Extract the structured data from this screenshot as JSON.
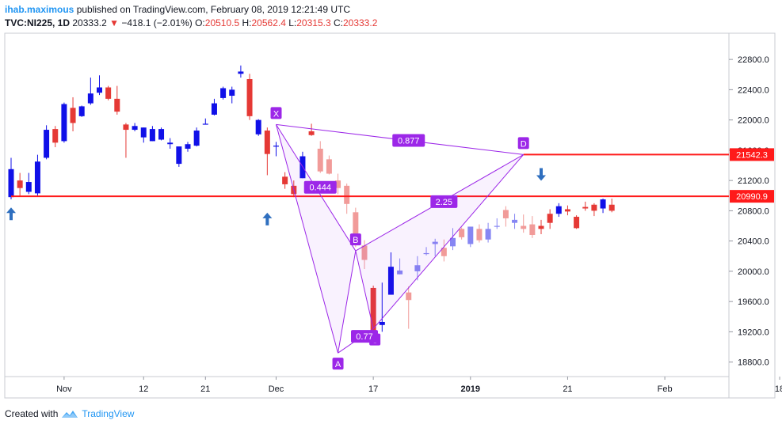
{
  "header": {
    "author": "ihab.maximous",
    "published": "published on TradingView.com, February 08, 2019 12:21:49 UTC",
    "symbol": "TVC:NI225, 1D",
    "last": "20333.2",
    "change": "−418.1 (−2.01%)",
    "o_label": "O:",
    "o_value": "20510.5",
    "h_label": "H:",
    "h_value": "20562.4",
    "l_label": "L:",
    "l_value": "20315.3",
    "c_label": "C:",
    "c_value": "20333.2"
  },
  "footer": {
    "created_with": "Created with",
    "brand": "TradingView"
  },
  "colors": {
    "up": "#1010e8",
    "down": "#e53935",
    "pattern": "#9c27e8",
    "hline": "#ff1a1a",
    "arrow": "#2f6fbf"
  },
  "chart_data": {
    "type": "candlestick",
    "ylim": [
      18650,
      23000
    ],
    "y_ticks": [
      "18800.0",
      "19200.0",
      "19600.0",
      "20000.0",
      "20400.0",
      "20800.0",
      "21200.0",
      "21600.0",
      "22000.0",
      "22400.0",
      "22800.0"
    ],
    "x_ticks": [
      {
        "i": 6,
        "label": "Nov"
      },
      {
        "i": 15,
        "label": "12"
      },
      {
        "i": 22,
        "label": "21"
      },
      {
        "i": 30,
        "label": "Dec"
      },
      {
        "i": 41,
        "label": "17"
      },
      {
        "i": 52,
        "label": "2019"
      },
      {
        "i": 63,
        "label": "21"
      },
      {
        "i": 74,
        "label": "Feb"
      },
      {
        "i": 87,
        "label": "18"
      }
    ],
    "candles": [
      {
        "o": 20980,
        "h": 21500,
        "l": 20950,
        "c": 21350
      },
      {
        "o": 21200,
        "h": 21300,
        "l": 21000,
        "c": 21100
      },
      {
        "o": 21050,
        "h": 21300,
        "l": 21020,
        "c": 21180
      },
      {
        "o": 21030,
        "h": 21540,
        "l": 21000,
        "c": 21450
      },
      {
        "o": 21500,
        "h": 21930,
        "l": 21480,
        "c": 21870
      },
      {
        "o": 21880,
        "h": 21920,
        "l": 21640,
        "c": 21700
      },
      {
        "o": 21720,
        "h": 22230,
        "l": 21700,
        "c": 22210
      },
      {
        "o": 22160,
        "h": 22300,
        "l": 21850,
        "c": 21960
      },
      {
        "o": 22050,
        "h": 22190,
        "l": 22040,
        "c": 22180
      },
      {
        "o": 22220,
        "h": 22560,
        "l": 22200,
        "c": 22350
      },
      {
        "o": 22360,
        "h": 22590,
        "l": 22330,
        "c": 22430
      },
      {
        "o": 22430,
        "h": 22450,
        "l": 22260,
        "c": 22280
      },
      {
        "o": 22280,
        "h": 22450,
        "l": 22070,
        "c": 22110
      },
      {
        "o": 21940,
        "h": 21960,
        "l": 21500,
        "c": 21870
      },
      {
        "o": 21870,
        "h": 21960,
        "l": 21850,
        "c": 21920
      },
      {
        "o": 21770,
        "h": 21900,
        "l": 21700,
        "c": 21900
      },
      {
        "o": 21720,
        "h": 21920,
        "l": 21720,
        "c": 21880
      },
      {
        "o": 21740,
        "h": 21900,
        "l": 21730,
        "c": 21880
      },
      {
        "o": 21680,
        "h": 21760,
        "l": 21620,
        "c": 21700
      },
      {
        "o": 21420,
        "h": 21630,
        "l": 21380,
        "c": 21650
      },
      {
        "o": 21620,
        "h": 21710,
        "l": 21580,
        "c": 21680
      },
      {
        "o": 21660,
        "h": 21900,
        "l": 21650,
        "c": 21860
      },
      {
        "o": 21940,
        "h": 22020,
        "l": 21940,
        "c": 21950
      },
      {
        "o": 22070,
        "h": 22280,
        "l": 22060,
        "c": 22220
      },
      {
        "o": 22290,
        "h": 22440,
        "l": 22270,
        "c": 22420
      },
      {
        "o": 22320,
        "h": 22440,
        "l": 22220,
        "c": 22400
      },
      {
        "o": 22610,
        "h": 22720,
        "l": 22560,
        "c": 22640
      },
      {
        "o": 22540,
        "h": 22610,
        "l": 22000,
        "c": 22050
      },
      {
        "o": 21810,
        "h": 22010,
        "l": 21790,
        "c": 22000
      },
      {
        "o": 21860,
        "h": 21900,
        "l": 21270,
        "c": 21550
      },
      {
        "o": 21650,
        "h": 21710,
        "l": 21520,
        "c": 21660
      },
      {
        "o": 21250,
        "h": 21310,
        "l": 21090,
        "c": 21150
      },
      {
        "o": 21130,
        "h": 21200,
        "l": 20980,
        "c": 21020
      },
      {
        "o": 21230,
        "h": 21580,
        "l": 21230,
        "c": 21520
      },
      {
        "o": 21850,
        "h": 21950,
        "l": 21790,
        "c": 21800
      },
      {
        "o": 21620,
        "h": 21720,
        "l": 21300,
        "c": 21320
      },
      {
        "o": 21480,
        "h": 21530,
        "l": 21280,
        "c": 21290
      },
      {
        "o": 21200,
        "h": 21290,
        "l": 21020,
        "c": 21100
      },
      {
        "o": 21130,
        "h": 21160,
        "l": 20760,
        "c": 20890
      },
      {
        "o": 20780,
        "h": 20840,
        "l": 20320,
        "c": 20400
      },
      {
        "o": 20340,
        "h": 20410,
        "l": 20030,
        "c": 20150
      },
      {
        "o": 19780,
        "h": 19810,
        "l": 19140,
        "c": 19160
      },
      {
        "o": 19290,
        "h": 19850,
        "l": 19200,
        "c": 19330
      },
      {
        "o": 19690,
        "h": 20250,
        "l": 19690,
        "c": 20060
      },
      {
        "o": 19960,
        "h": 20170,
        "l": 19960,
        "c": 20010
      },
      {
        "o": 19720,
        "h": 19800,
        "l": 19240,
        "c": 19620
      },
      {
        "o": 20000,
        "h": 20200,
        "l": 19880,
        "c": 20080
      },
      {
        "o": 20230,
        "h": 20320,
        "l": 20210,
        "c": 20240
      },
      {
        "o": 20360,
        "h": 20430,
        "l": 20200,
        "c": 20390
      },
      {
        "o": 20310,
        "h": 20420,
        "l": 20130,
        "c": 20200
      },
      {
        "o": 20330,
        "h": 20570,
        "l": 20280,
        "c": 20440
      },
      {
        "o": 20560,
        "h": 20580,
        "l": 20420,
        "c": 20450
      },
      {
        "o": 20360,
        "h": 20590,
        "l": 20320,
        "c": 20590
      },
      {
        "o": 20560,
        "h": 20620,
        "l": 20380,
        "c": 20410
      },
      {
        "o": 20420,
        "h": 20640,
        "l": 20380,
        "c": 20560
      },
      {
        "o": 20590,
        "h": 20700,
        "l": 20560,
        "c": 20600
      },
      {
        "o": 20810,
        "h": 20860,
        "l": 20590,
        "c": 20700
      },
      {
        "o": 20640,
        "h": 20760,
        "l": 20560,
        "c": 20680
      },
      {
        "o": 20600,
        "h": 20750,
        "l": 20510,
        "c": 20560
      },
      {
        "o": 20620,
        "h": 20730,
        "l": 20440,
        "c": 20480
      },
      {
        "o": 20600,
        "h": 20680,
        "l": 20490,
        "c": 20560
      },
      {
        "o": 20760,
        "h": 20820,
        "l": 20560,
        "c": 20640
      },
      {
        "o": 20760,
        "h": 20900,
        "l": 20720,
        "c": 20860
      },
      {
        "o": 20820,
        "h": 20870,
        "l": 20740,
        "c": 20790
      },
      {
        "o": 20720,
        "h": 20740,
        "l": 20560,
        "c": 20570
      },
      {
        "o": 20850,
        "h": 20920,
        "l": 20800,
        "c": 20830
      },
      {
        "o": 20880,
        "h": 20900,
        "l": 20730,
        "c": 20800
      },
      {
        "o": 20830,
        "h": 20960,
        "l": 20770,
        "c": 20950
      },
      {
        "o": 20880,
        "h": 20960,
        "l": 20780,
        "c": 20800
      }
    ],
    "hlines": [
      {
        "value": 21542.3,
        "label": "21542.3",
        "from_i": 58
      },
      {
        "value": 20990.9,
        "label": "20990.9",
        "from_i": 0
      }
    ],
    "pattern": {
      "points": [
        {
          "name": "X",
          "i": 30,
          "v": 21940
        },
        {
          "name": "A",
          "i": 37,
          "v": 18920
        },
        {
          "name": "B",
          "i": 39,
          "v": 20270
        },
        {
          "name": "C",
          "i": 41,
          "v": 19240
        },
        {
          "name": "D",
          "i": 58,
          "v": 21542
        }
      ],
      "ratios": [
        {
          "label": "0.877",
          "i": 45,
          "v": 21730
        },
        {
          "label": "0.444",
          "i": 35,
          "v": 21110
        },
        {
          "label": "0.77",
          "i": 40,
          "v": 19140
        },
        {
          "label": "2.25",
          "i": 49,
          "v": 20920
        }
      ]
    },
    "arrows": [
      {
        "dir": "up",
        "i": 0,
        "v": 20760
      },
      {
        "dir": "up",
        "i": 29,
        "v": 20690
      },
      {
        "dir": "down",
        "i": 60,
        "v": 21280
      }
    ]
  }
}
